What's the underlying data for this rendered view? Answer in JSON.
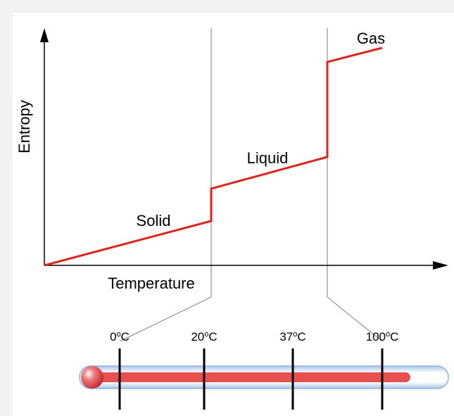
{
  "diagram": {
    "y_axis_label": "Entropy",
    "x_axis_label": "Temperature",
    "phases": [
      "Solid",
      "Liquid",
      "Gas"
    ],
    "thermometer": {
      "ticks": [
        {
          "number": "0",
          "degree": "o",
          "unit": "C"
        },
        {
          "number": "20",
          "degree": "o",
          "unit": "C"
        },
        {
          "number": "37",
          "degree": "o",
          "unit": "C"
        },
        {
          "number": "100",
          "degree": "o",
          "unit": "C"
        }
      ]
    }
  }
}
